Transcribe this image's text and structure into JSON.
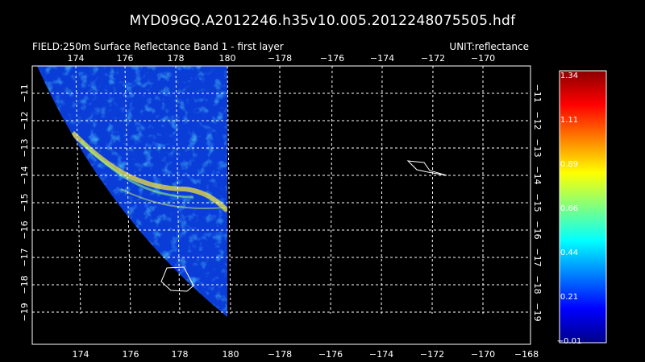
{
  "title": "MYD09GQ.A2012246.h35v10.005.2012248075505.hdf",
  "field_label": "FIELD:250m Surface Reflectance Band 1 - first layer",
  "unit_label": "UNIT:reflectance",
  "map": {
    "top_lon_ticks": [
      "174",
      "176",
      "178",
      "180",
      "−178",
      "−176",
      "−174",
      "−172",
      "−170"
    ],
    "bottom_lon_ticks": [
      "174",
      "176",
      "178",
      "180",
      "−178",
      "−176",
      "−174",
      "−172",
      "−170",
      "−168"
    ],
    "lat_ticks": [
      "−11",
      "−12",
      "−13",
      "−14",
      "−15",
      "−16",
      "−17",
      "−18",
      "−19"
    ],
    "grid": true,
    "background_color": "#000000",
    "data_color_low": "#0a3cd8",
    "data_color_high": "#ffd200"
  },
  "colorbar": {
    "labels": [
      "1.34",
      "1.11",
      "0.89",
      "0.66",
      "0.44",
      "0.21",
      "−0.01"
    ],
    "min": -0.01,
    "max": 1.34,
    "colors": [
      "#00008b",
      "#0000ff",
      "#0080ff",
      "#00ffff",
      "#80ff80",
      "#ffff00",
      "#ff8000",
      "#ff0000",
      "#8b0000"
    ]
  }
}
